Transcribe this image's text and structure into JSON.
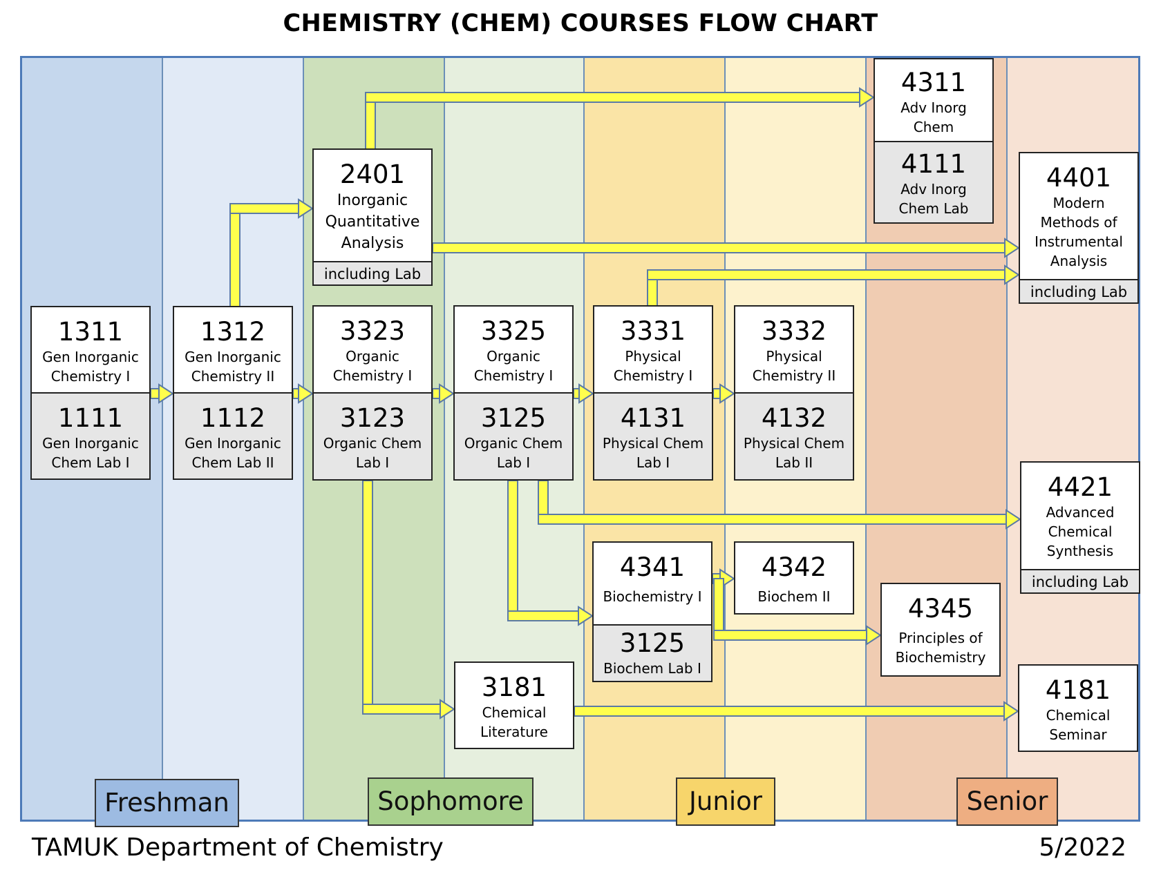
{
  "title": "CHEMISTRY (CHEM) COURSES FLOW CHART",
  "columns": [
    {
      "year": "Freshman",
      "color": "#c5d7ed"
    },
    {
      "year": "Freshman",
      "color": "#e1eaf6"
    },
    {
      "year": "Sophomore",
      "color": "#cde0bb"
    },
    {
      "year": "Sophomore",
      "color": "#e6efde"
    },
    {
      "year": "Junior",
      "color": "#fae4a6"
    },
    {
      "year": "Junior",
      "color": "#fdf2cd"
    },
    {
      "year": "Senior",
      "color": "#f0ccb2"
    },
    {
      "year": "Senior",
      "color": "#f7e2d4"
    }
  ],
  "years": {
    "freshman": {
      "label": "Freshman",
      "color": "#9dbbe2"
    },
    "sophomore": {
      "label": "Sophomore",
      "color": "#a9d18e"
    },
    "junior": {
      "label": "Junior",
      "color": "#f7d56b"
    },
    "senior": {
      "label": "Senior",
      "color": "#eeae82"
    }
  },
  "courses": {
    "c1311": {
      "num": "1311",
      "name": "Gen Inorganic\nChemistry I"
    },
    "c1111": {
      "num": "1111",
      "name": "Gen Inorganic\nChem Lab I"
    },
    "c1312": {
      "num": "1312",
      "name": "Gen Inorganic\nChemistry II"
    },
    "c1112": {
      "num": "1112",
      "name": "Gen Inorganic\nChem Lab II"
    },
    "c2401": {
      "num": "2401",
      "name": "Inorganic\nQuantitative\nAnalysis",
      "note": "including Lab"
    },
    "c3323": {
      "num": "3323",
      "name": "Organic\nChemistry I"
    },
    "c3123": {
      "num": "3123",
      "name": "Organic Chem\nLab I"
    },
    "c3325": {
      "num": "3325",
      "name": "Organic\nChemistry I"
    },
    "c3125": {
      "num": "3125",
      "name": "Organic Chem\nLab I"
    },
    "c3331": {
      "num": "3331",
      "name": "Physical\nChemistry I"
    },
    "c4131": {
      "num": "4131",
      "name": "Physical Chem\nLab I"
    },
    "c3332": {
      "num": "3332",
      "name": "Physical\nChemistry II"
    },
    "c4132": {
      "num": "4132",
      "name": "Physical Chem\nLab II"
    },
    "c4311": {
      "num": "4311",
      "name": "Adv Inorg\nChem"
    },
    "c4111": {
      "num": "4111",
      "name": "Adv Inorg\nChem Lab"
    },
    "c4401": {
      "num": "4401",
      "name": "Modern\nMethods of\nInstrumental\nAnalysis",
      "note": "including Lab"
    },
    "c4421": {
      "num": "4421",
      "name": "Advanced\nChemical\nSynthesis",
      "note": "including Lab"
    },
    "c4341": {
      "num": "4341",
      "name": "Biochemistry I"
    },
    "c3125b": {
      "num": "3125",
      "name": "Biochem Lab I"
    },
    "c4342": {
      "num": "4342",
      "name": "Biochem II"
    },
    "c4345": {
      "num": "4345",
      "name": "Principles of\nBiochemistry"
    },
    "c3181": {
      "num": "3181",
      "name": "Chemical\nLiterature"
    },
    "c4181": {
      "num": "4181",
      "name": "Chemical\nSeminar"
    }
  },
  "arrow_color": "#ffff4d",
  "footer": {
    "left": "TAMUK Department of Chemistry",
    "right": "5/2022"
  }
}
